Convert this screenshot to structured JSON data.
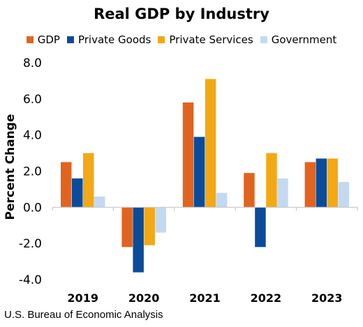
{
  "chart_data": {
    "type": "bar",
    "title": "Real GDP by Industry",
    "ylabel": "Percent Change",
    "xlabel": "",
    "categories": [
      "2019",
      "2020",
      "2021",
      "2022",
      "2023"
    ],
    "series": [
      {
        "name": "GDP",
        "color": "#e0641f",
        "values": [
          2.5,
          -2.2,
          5.8,
          1.9,
          2.5
        ]
      },
      {
        "name": "Private Goods",
        "color": "#0a4c9a",
        "values": [
          1.6,
          -3.6,
          3.9,
          -2.2,
          2.7
        ]
      },
      {
        "name": "Private Services",
        "color": "#f3a815",
        "values": [
          3.0,
          -2.1,
          7.1,
          3.0,
          2.7
        ]
      },
      {
        "name": "Government",
        "color": "#c3d9f1",
        "values": [
          0.6,
          -1.4,
          0.8,
          1.6,
          1.4
        ]
      }
    ],
    "ylim": [
      -4.0,
      8.0
    ],
    "yticks": [
      "-4.0",
      "-2.0",
      "0.0",
      "2.0",
      "4.0",
      "6.0",
      "8.0"
    ],
    "grid": false,
    "legend_position": "top"
  },
  "source": "U.S. Bureau of Economic Analysis"
}
